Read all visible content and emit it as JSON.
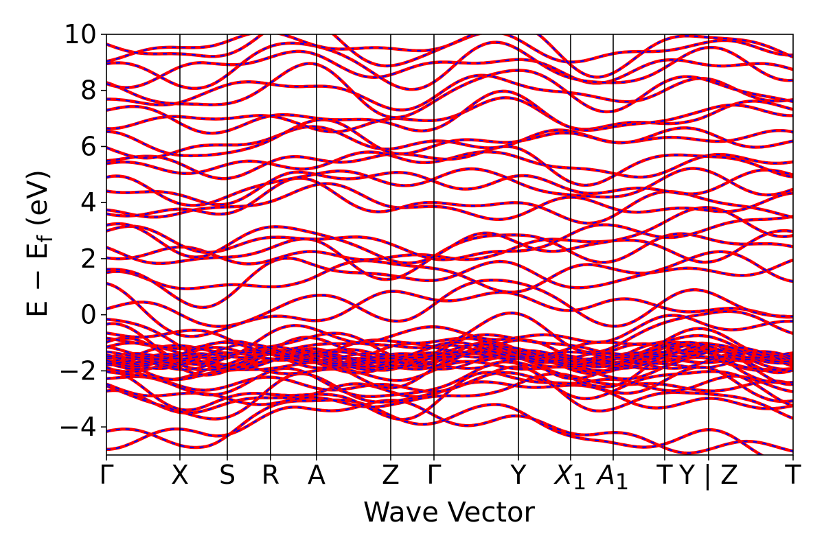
{
  "chart_data": {
    "type": "line",
    "title": "",
    "xlabel": "Wave Vector",
    "ylabel_parts": {
      "main": "E − E",
      "sub": "f",
      "unit": " (eV)"
    },
    "ylim": [
      -5,
      10
    ],
    "yticks": [
      {
        "value": -4,
        "label": "−4"
      },
      {
        "value": -2,
        "label": "−2"
      },
      {
        "value": 0,
        "label": "0"
      },
      {
        "value": 2,
        "label": "2"
      },
      {
        "value": 4,
        "label": "4"
      },
      {
        "value": 6,
        "label": "6"
      },
      {
        "value": 8,
        "label": "8"
      },
      {
        "value": 10,
        "label": "10"
      }
    ],
    "kpoints": [
      {
        "label": "Γ",
        "sub": "",
        "pos": 0.0,
        "line": false
      },
      {
        "label": "X",
        "sub": "",
        "pos": 0.107,
        "line": true
      },
      {
        "label": "S",
        "sub": "",
        "pos": 0.176,
        "line": true
      },
      {
        "label": "R",
        "sub": "",
        "pos": 0.239,
        "line": true
      },
      {
        "label": "A",
        "sub": "",
        "pos": 0.306,
        "line": true
      },
      {
        "label": "Z",
        "sub": "",
        "pos": 0.414,
        "line": true
      },
      {
        "label": "Γ",
        "sub": "",
        "pos": 0.477,
        "line": true
      },
      {
        "label": "Y",
        "sub": "",
        "pos": 0.6,
        "line": true
      },
      {
        "label": "X",
        "sub": "1",
        "pos": 0.676,
        "line": true,
        "italic": true
      },
      {
        "label": "A",
        "sub": "1",
        "pos": 0.738,
        "line": true,
        "italic": true
      },
      {
        "label": "T",
        "sub": "",
        "pos": 0.813,
        "line": true
      },
      {
        "label": "Y | Z",
        "sub": "",
        "pos": 0.877,
        "line": true,
        "wide": true
      },
      {
        "label": "T",
        "sub": "",
        "pos": 1.0,
        "line": false
      }
    ],
    "series": [
      {
        "color": "#ff0000",
        "style": "solid"
      },
      {
        "color": "#0000ff",
        "style": "dashed"
      }
    ],
    "bands": [
      [
        -4.8,
        -4.0,
        -3.5,
        -3.2,
        -3.8,
        -4.3,
        -4.6,
        -4.9
      ],
      [
        -3.0,
        -3.2,
        -2.9,
        -2.6,
        -2.5,
        -2.8,
        -3.1,
        -3.4
      ],
      [
        -2.6,
        -2.8,
        -3.3,
        -3.0,
        -2.7,
        -2.2,
        -2.6,
        -2.7
      ],
      [
        -2.2,
        -2.4,
        -2.6,
        -2.5,
        -2.4,
        -2.3,
        -2.5,
        -2.6
      ],
      [
        -1.9,
        -2.0,
        -2.1,
        -2.0,
        -1.9,
        -2.0,
        -1.8,
        -2.0
      ],
      [
        -1.7,
        -1.75,
        -1.8,
        -1.7,
        -1.65,
        -1.75,
        -1.7,
        -1.75
      ],
      [
        -1.55,
        -1.6,
        -1.65,
        -1.6,
        -1.55,
        -1.6,
        -1.6,
        -1.65
      ],
      [
        -1.45,
        -1.5,
        -1.5,
        -1.45,
        -1.4,
        -1.5,
        -1.45,
        -1.5
      ],
      [
        -1.3,
        -1.35,
        -1.4,
        -1.3,
        -1.3,
        -1.35,
        -1.3,
        -1.4
      ],
      [
        -1.1,
        -1.2,
        -1.25,
        -1.0,
        -1.1,
        -1.15,
        -0.95,
        -1.2
      ],
      [
        -0.6,
        -0.9,
        -1.1,
        -0.8,
        -0.6,
        -0.9,
        -0.2,
        -0.3
      ],
      [
        0.4,
        -0.3,
        0.0,
        0.5,
        0.8,
        0.2,
        0.3,
        0.1
      ],
      [
        1.3,
        0.9,
        1.4,
        1.8,
        1.1,
        1.5,
        1.6,
        1.8
      ],
      [
        2.0,
        2.2,
        2.1,
        1.9,
        2.4,
        2.6,
        2.2,
        2.8
      ],
      [
        2.9,
        2.5,
        2.8,
        2.3,
        2.2,
        2.9,
        3.1,
        3.5
      ],
      [
        3.4,
        3.8,
        4.4,
        4.0,
        3.6,
        3.9,
        3.8,
        4.0
      ],
      [
        4.4,
        4.2,
        4.8,
        5.0,
        4.7,
        4.4,
        4.6,
        4.9
      ],
      [
        5.2,
        5.4,
        5.2,
        5.8,
        5.6,
        5.0,
        5.5,
        5.4
      ],
      [
        5.8,
        6.0,
        6.4,
        6.2,
        6.0,
        6.5,
        6.2,
        6.3
      ],
      [
        6.8,
        7.2,
        6.6,
        7.0,
        7.4,
        6.8,
        7.0,
        7.5
      ],
      [
        7.6,
        7.9,
        8.2,
        7.6,
        8.3,
        7.8,
        8.1,
        7.7
      ],
      [
        8.4,
        8.8,
        9.2,
        8.7,
        9.0,
        8.6,
        8.9,
        8.8
      ],
      [
        9.3,
        9.6,
        9.9,
        9.4,
        9.8,
        9.2,
        9.5,
        9.6
      ]
    ]
  }
}
